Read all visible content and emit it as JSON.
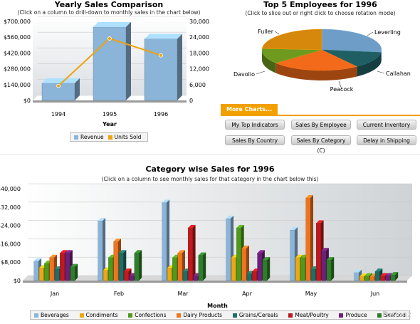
{
  "yearly": {
    "title": "Yearly Sales Comparison",
    "subtitle": "(Click on a column to drill-down to monthly sales in the chart below)",
    "chart_data": {
      "type": "bar",
      "title": "Yearly Sales Comparison",
      "categories": [
        "1994",
        "1995",
        "1996"
      ],
      "xlabel": "Year",
      "series": [
        {
          "name": "Revenue",
          "values": [
            152000,
            650000,
            545000
          ],
          "axis": "left"
        },
        {
          "name": "Units Sold",
          "values": [
            5500,
            23500,
            17100
          ],
          "axis": "right",
          "render": "line"
        }
      ],
      "left_ticks": [
        "$0",
        "$140,000",
        "$280,000",
        "$420,000",
        "$560,000",
        "$700,000"
      ],
      "right_ticks": [
        "0",
        "6,000",
        "12,000",
        "18,000",
        "24,000",
        "30,000"
      ],
      "ylim_left": [
        0,
        700000
      ],
      "ylim_right": [
        0,
        30000
      ],
      "legend_placement": "bottom"
    },
    "colors": {
      "revenue": "#8ab4d8",
      "units": "#f0a30a"
    }
  },
  "top5": {
    "title": "Top 5 Employees for 1996",
    "subtitle": "(Click to slice out or right click to choose rotation mode)",
    "chart_data": {
      "type": "pie",
      "categories": [
        "Leverling",
        "Callahan",
        "Peacock",
        "Davolio",
        "Fuller"
      ],
      "values": [
        27,
        13,
        24,
        12,
        24
      ]
    },
    "colors": [
      "#6e9dc7",
      "#1f5f63",
      "#f26a1a",
      "#6d9a1f",
      "#d6880c"
    ]
  },
  "more": {
    "tab_label": "More Charts...",
    "buttons": [
      "My Top Indicators",
      "Sales By Employee",
      "Current Inventory",
      "Sales By Country",
      "Sales By Category (C)",
      "Delay in Shipping"
    ]
  },
  "category": {
    "title": "Category wise Sales for 1996",
    "subtitle": "(Click on a column to see monthly sales for that category in the chart below this)",
    "chart_data": {
      "type": "bar",
      "title": "Category wise Sales for 1996",
      "xlabel": "Month",
      "categories": [
        "Jan",
        "Feb",
        "Mar",
        "Apr",
        "May",
        "Jun"
      ],
      "ylim": [
        0,
        40000
      ],
      "y_ticks": [
        "$0",
        "$8,000",
        "$16,000",
        "$24,000",
        "$32,000",
        "$40,000"
      ],
      "series": [
        {
          "name": "Beverages",
          "values": [
            8500,
            26000,
            34000,
            27000,
            22000,
            3500
          ]
        },
        {
          "name": "Condiments",
          "values": [
            5500,
            4500,
            5500,
            10000,
            10000,
            1800
          ]
        },
        {
          "name": "Confections",
          "values": [
            7500,
            10000,
            10000,
            23000,
            10000,
            2000
          ]
        },
        {
          "name": "Dairy Products",
          "values": [
            10000,
            17000,
            12000,
            14000,
            36000,
            1800
          ]
        },
        {
          "name": "Grains/Cerea ls",
          "values": [
            5000,
            12000,
            4000,
            3000,
            5000,
            4000
          ]
        },
        {
          "name": "Meat/Poultry",
          "values": [
            12000,
            4000,
            23000,
            4000,
            25000,
            2000
          ]
        },
        {
          "name": "Produce",
          "values": [
            12000,
            2000,
            2000,
            12000,
            13000,
            2000
          ]
        },
        {
          "name": "Seafood",
          "values": [
            6000,
            12000,
            11000,
            9000,
            9000,
            2500
          ]
        }
      ],
      "legend_placement": "bottom"
    },
    "colors": [
      "#8ab4d8",
      "#e8a915",
      "#4e9a1a",
      "#f0741f",
      "#1f6e66",
      "#c0191d",
      "#6e1f7a",
      "#2e7d2a"
    ],
    "legend_labels": [
      "Beverages",
      "Condiments",
      "Confections",
      "Dairy Products",
      "Grains/Cereals",
      "Meat/Poultry",
      "Produce",
      "Seafood"
    ]
  },
  "watermark": "Fusionz"
}
